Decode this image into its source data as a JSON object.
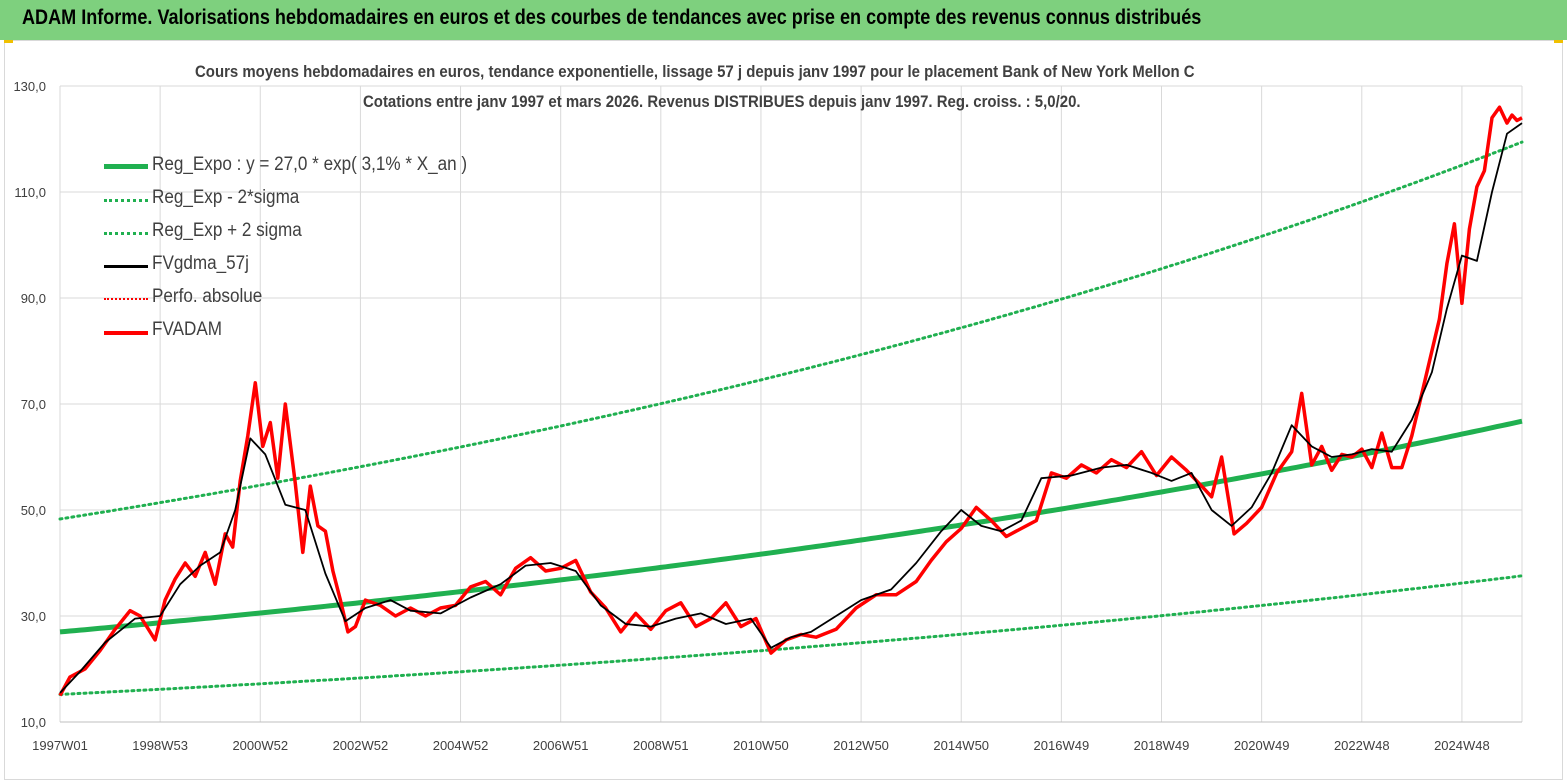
{
  "banner": {
    "title": "ADAM Informe. Valorisations hebdomadaires en euros et des courbes de tendances avec prise en compte des revenus connus distribués"
  },
  "colors": {
    "banner_bg": "#7ed07e",
    "reg_expo": "#20b050",
    "reg_bands": "#20b050",
    "fvgdma": "#000000",
    "perfo": "#ff0000",
    "fvadam": "#ff0000",
    "grid": "#d9d9d9"
  },
  "chart_data": {
    "type": "line",
    "title_line1": "Cours moyens hebdomadaires en euros, tendance exponentielle, lissage 57 j depuis janv 1997  pour le placement Bank of New York Mellon C",
    "title_line2": "Cotations entre janv 1997 et mars 2026. Revenus  DISTRIBUES depuis janv 1997.  Reg. croiss. : 5,0/20.",
    "y_ticks": [
      "10,0",
      "30,0",
      "50,0",
      "70,0",
      "90,0",
      "110,0",
      "130,0"
    ],
    "y_tick_values": [
      10,
      30,
      50,
      70,
      90,
      110,
      130
    ],
    "ylim": [
      10,
      130
    ],
    "x_ticks": [
      "1997W01",
      "1998W53",
      "2000W52",
      "2002W52",
      "2004W52",
      "2006W51",
      "2008W51",
      "2010W50",
      "2012W50",
      "2014W50",
      "2016W49",
      "2018W49",
      "2020W49",
      "2022W48",
      "2024W48"
    ],
    "x_tick_years": [
      1997.0,
      1999.0,
      2001.0,
      2003.0,
      2005.0,
      2007.0,
      2009.0,
      2011.0,
      2013.0,
      2015.0,
      2017.0,
      2019.0,
      2021.0,
      2023.0,
      2025.0
    ],
    "xlim": [
      1997.0,
      2026.2
    ],
    "legend_placement": "top-left",
    "grid": "vertical gridlines at x ticks, horizontal gridlines at y ticks",
    "series": [
      {
        "name": "Reg_Expo : y = 27,0 * exp( 3,1% *  X_an )",
        "style": "thick-solid",
        "color": "#20b050",
        "model": {
          "a": 27.0,
          "rate": 0.031,
          "x0": 1997.0
        }
      },
      {
        "name": "Reg_Exp - 2*sigma",
        "style": "dotted",
        "color": "#20b050",
        "model": {
          "a": 15.2,
          "rate": 0.031,
          "x0": 1997.0
        }
      },
      {
        "name": "Reg_Exp + 2 sigma",
        "style": "dotted",
        "color": "#20b050",
        "model": {
          "a": 48.3,
          "rate": 0.031,
          "x0": 1997.0
        }
      },
      {
        "name": "FVgdma_57j",
        "style": "solid",
        "color": "#000000",
        "x": [
          1997.0,
          1997.4,
          1997.9,
          1998.5,
          1999.0,
          1999.4,
          1999.8,
          2000.2,
          2000.5,
          2000.8,
          2001.1,
          2001.5,
          2001.9,
          2002.3,
          2002.7,
          2003.1,
          2003.6,
          2004.0,
          2004.6,
          2005.2,
          2005.8,
          2006.3,
          2006.8,
          2007.3,
          2007.8,
          2008.3,
          2008.8,
          2009.3,
          2009.8,
          2010.3,
          2010.8,
          2011.2,
          2011.6,
          2012.0,
          2012.5,
          2013.0,
          2013.6,
          2014.1,
          2014.6,
          2015.0,
          2015.4,
          2015.8,
          2016.2,
          2016.6,
          2017.2,
          2017.8,
          2018.3,
          2018.8,
          2019.2,
          2019.6,
          2020.0,
          2020.4,
          2020.8,
          2021.2,
          2021.6,
          2022.0,
          2022.4,
          2022.8,
          2023.2,
          2023.6,
          2024.0,
          2024.4,
          2024.7,
          2025.0,
          2025.3,
          2025.6,
          2025.9,
          2026.2
        ],
        "y": [
          15.5,
          19.5,
          25.0,
          29.5,
          30.0,
          36.0,
          39.5,
          42.0,
          50.0,
          63.5,
          60.5,
          51.0,
          50.0,
          38.0,
          29.0,
          31.5,
          33.0,
          31.0,
          30.5,
          33.5,
          36.0,
          39.5,
          40.0,
          38.5,
          32.0,
          28.5,
          28.0,
          29.5,
          30.5,
          28.5,
          29.5,
          24.0,
          26.0,
          27.0,
          30.0,
          33.0,
          35.0,
          40.0,
          46.0,
          50.0,
          47.0,
          46.0,
          48.0,
          56.0,
          56.5,
          58.0,
          58.5,
          57.0,
          55.5,
          57.0,
          50.0,
          47.0,
          50.5,
          57.0,
          66.0,
          62.0,
          60.0,
          60.5,
          61.5,
          61.0,
          67.0,
          76.0,
          88.0,
          98.0,
          97.0,
          110.0,
          121.0,
          123.0
        ]
      },
      {
        "name": "Perfo. absolue",
        "style": "dotted",
        "color": "#ff0000"
      },
      {
        "name": "FVADAM",
        "style": "solid",
        "color": "#ff0000",
        "x": [
          1997.0,
          1997.2,
          1997.5,
          1997.8,
          1998.1,
          1998.4,
          1998.6,
          1998.9,
          1999.1,
          1999.3,
          1999.5,
          1999.7,
          1999.9,
          2000.1,
          2000.3,
          2000.45,
          2000.6,
          2000.75,
          2000.9,
          2001.05,
          2001.2,
          2001.35,
          2001.5,
          2001.7,
          2001.85,
          2002.0,
          2002.15,
          2002.3,
          2002.45,
          2002.6,
          2002.75,
          2002.9,
          2003.1,
          2003.4,
          2003.7,
          2004.0,
          2004.3,
          2004.6,
          2004.9,
          2005.2,
          2005.5,
          2005.8,
          2006.1,
          2006.4,
          2006.7,
          2007.0,
          2007.3,
          2007.6,
          2007.9,
          2008.2,
          2008.5,
          2008.8,
          2009.1,
          2009.4,
          2009.7,
          2010.0,
          2010.3,
          2010.6,
          2010.9,
          2011.2,
          2011.5,
          2011.8,
          2012.1,
          2012.5,
          2012.9,
          2013.3,
          2013.7,
          2014.1,
          2014.4,
          2014.7,
          2015.0,
          2015.3,
          2015.6,
          2015.9,
          2016.2,
          2016.5,
          2016.8,
          2017.1,
          2017.4,
          2017.7,
          2018.0,
          2018.3,
          2018.6,
          2018.9,
          2019.2,
          2019.5,
          2019.8,
          2020.0,
          2020.2,
          2020.45,
          2020.7,
          2021.0,
          2021.3,
          2021.6,
          2021.8,
          2022.0,
          2022.2,
          2022.4,
          2022.6,
          2022.8,
          2023.0,
          2023.2,
          2023.4,
          2023.6,
          2023.8,
          2024.0,
          2024.2,
          2024.4,
          2024.55,
          2024.7,
          2024.85,
          2025.0,
          2025.15,
          2025.3,
          2025.45,
          2025.6,
          2025.75,
          2025.9,
          2026.0,
          2026.1,
          2026.2
        ],
        "y": [
          15.0,
          18.5,
          20.0,
          23.5,
          27.5,
          31.0,
          30.0,
          25.5,
          33.0,
          37.0,
          40.0,
          37.5,
          42.0,
          36.0,
          45.5,
          43.0,
          55.5,
          64.0,
          74.0,
          62.0,
          66.5,
          56.0,
          70.0,
          55.0,
          42.0,
          54.5,
          47.0,
          46.0,
          38.5,
          33.0,
          27.0,
          28.0,
          33.0,
          32.0,
          30.0,
          31.5,
          30.0,
          31.5,
          32.0,
          35.5,
          36.5,
          34.0,
          39.0,
          41.0,
          38.5,
          39.0,
          40.5,
          34.5,
          31.5,
          27.0,
          30.5,
          27.5,
          31.0,
          32.5,
          28.0,
          29.5,
          32.5,
          28.0,
          29.5,
          23.0,
          25.5,
          26.5,
          26.0,
          27.5,
          31.5,
          34.0,
          34.0,
          36.5,
          40.5,
          44.0,
          46.5,
          50.5,
          48.0,
          45.0,
          46.5,
          48.0,
          57.0,
          56.0,
          58.5,
          57.0,
          59.5,
          58.0,
          61.0,
          56.5,
          60.0,
          57.5,
          54.5,
          52.5,
          60.0,
          45.5,
          47.5,
          50.5,
          57.0,
          61.0,
          72.0,
          58.5,
          62.0,
          57.5,
          60.5,
          60.0,
          61.5,
          58.0,
          64.5,
          58.0,
          58.0,
          64.0,
          72.0,
          80.0,
          86.0,
          96.5,
          104.0,
          89.0,
          103.0,
          111.0,
          114.0,
          124.0,
          126.0,
          123.0,
          124.5,
          123.5,
          124.0
        ]
      }
    ]
  }
}
